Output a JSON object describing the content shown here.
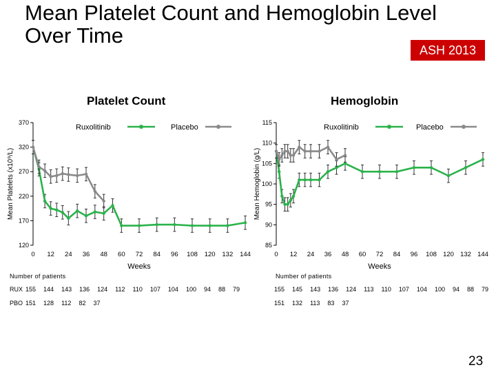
{
  "slide": {
    "title": "Mean Platelet Count  and Hemoglobin Level Over Time",
    "badge": "ASH 2013",
    "page_number": "23"
  },
  "colors": {
    "ruxolitinib": "#2ab24a",
    "placebo": "#8a8a8a",
    "badge": "#cc0000"
  },
  "tables": {
    "left": {
      "header": "Number of patients",
      "rux_label": "RUX",
      "rux": [
        "155",
        "144",
        "143",
        "136",
        "124",
        "112",
        "110",
        "107",
        "104",
        "100",
        "94",
        "88",
        "79"
      ],
      "pbo_label": "PBO",
      "pbo": [
        "151",
        "128",
        "112",
        "82",
        "37"
      ]
    },
    "right": {
      "header": "Number of patients",
      "rux": [
        "155",
        "145",
        "143",
        "136",
        "124",
        "113",
        "110",
        "107",
        "104",
        "100",
        "94",
        "88",
        "79"
      ],
      "pbo": [
        "151",
        "132",
        "113",
        "83",
        "37"
      ]
    }
  },
  "chart_data": [
    {
      "type": "line",
      "title": "Platelet Count",
      "xlabel": "Weeks",
      "ylabel": "Mean Platelets (x10⁹/L)",
      "xlim": [
        0,
        144
      ],
      "ylim": [
        120,
        370
      ],
      "xticks": [
        "0",
        "12",
        "24",
        "36",
        "48",
        "60",
        "72",
        "84",
        "96",
        "108",
        "120",
        "132",
        "144"
      ],
      "yticks": [
        "120",
        "170",
        "220",
        "270",
        "320",
        "370"
      ],
      "legend": [
        "Ruxolitinib",
        "Placebo"
      ],
      "series": [
        {
          "name": "Ruxolitinib",
          "x": [
            0,
            4,
            8,
            12,
            16,
            20,
            24,
            30,
            36,
            42,
            48,
            54,
            60,
            72,
            84,
            96,
            108,
            120,
            132,
            144
          ],
          "y": [
            320,
            275,
            210,
            195,
            192,
            187,
            175,
            190,
            180,
            188,
            185,
            201,
            160,
            160,
            162,
            162,
            160,
            160,
            160,
            166
          ]
        },
        {
          "name": "Placebo",
          "x": [
            0,
            4,
            8,
            12,
            16,
            20,
            24,
            30,
            36,
            42,
            48
          ],
          "y": [
            320,
            280,
            272,
            260,
            262,
            266,
            264,
            262,
            265,
            230,
            210
          ]
        }
      ]
    },
    {
      "type": "line",
      "title": "Hemoglobin",
      "xlabel": "Weeks",
      "ylabel": "Mean Hemoglobin (g/L)",
      "xlim": [
        0,
        144
      ],
      "ylim": [
        85,
        115
      ],
      "xticks": [
        "0",
        "12",
        "24",
        "36",
        "48",
        "60",
        "72",
        "84",
        "96",
        "108",
        "120",
        "132",
        "144"
      ],
      "yticks": [
        "85",
        "90",
        "95",
        "100",
        "105",
        "110",
        "115"
      ],
      "legend": [
        "Ruxolitinib",
        "Placebo"
      ],
      "series": [
        {
          "name": "Ruxolitinib",
          "x": [
            0,
            2,
            4,
            6,
            8,
            10,
            12,
            16,
            20,
            24,
            30,
            36,
            42,
            48,
            60,
            72,
            84,
            96,
            108,
            120,
            132,
            144
          ],
          "y": [
            108,
            103,
            97,
            95,
            95,
            96,
            97,
            101,
            101,
            101,
            101,
            103,
            104,
            105,
            103,
            103,
            103,
            104,
            104,
            102,
            104,
            106
          ]
        },
        {
          "name": "Placebo",
          "x": [
            0,
            2,
            4,
            6,
            8,
            10,
            12,
            16,
            20,
            24,
            30,
            36,
            42,
            48
          ],
          "y": [
            108,
            106,
            107,
            108,
            108,
            107,
            107,
            109,
            108,
            108,
            108,
            109,
            106,
            107
          ]
        }
      ]
    }
  ]
}
